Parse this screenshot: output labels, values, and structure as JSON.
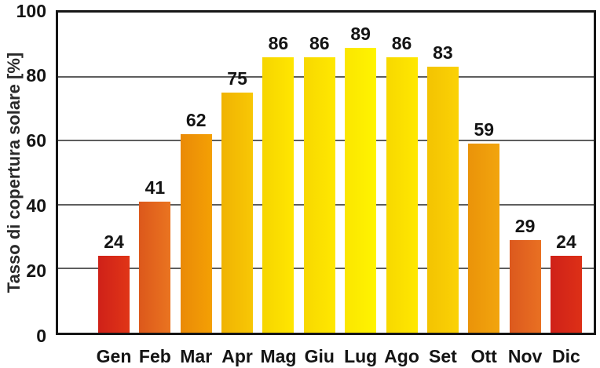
{
  "chart_data": {
    "type": "bar",
    "title": "",
    "xlabel": "",
    "ylabel": "Tasso di copertura solare [%]",
    "categories": [
      "Gen",
      "Feb",
      "Mar",
      "Apr",
      "Mag",
      "Giu",
      "Lug",
      "Ago",
      "Set",
      "Ott",
      "Nov",
      "Dic"
    ],
    "values": [
      24,
      41,
      62,
      75,
      86,
      86,
      89,
      86,
      83,
      59,
      29,
      24
    ],
    "value_labels": [
      "24",
      "41",
      "62",
      "75",
      "86",
      "86",
      "89",
      "86",
      "83",
      "59",
      "29",
      "24"
    ],
    "ylim": [
      0,
      100
    ],
    "yticks": [
      0,
      20,
      40,
      60,
      80,
      100
    ],
    "gridlines_at": [
      20,
      40,
      60,
      80
    ],
    "grid": "horizontal",
    "legend": "none",
    "bar_gradients": [
      [
        "#cf2118",
        "#e03517"
      ],
      [
        "#dc581b",
        "#ea7420"
      ],
      [
        "#ea8a07",
        "#f4a004"
      ],
      [
        "#f0b303",
        "#f8c705"
      ],
      [
        "#f6d500",
        "#ffe600"
      ],
      [
        "#f7d800",
        "#ffe800"
      ],
      [
        "#fbe600",
        "#fff400"
      ],
      [
        "#f7d800",
        "#ffe800"
      ],
      [
        "#f3c302",
        "#fbd204"
      ],
      [
        "#ea9309",
        "#f2a50d"
      ],
      [
        "#dc591e",
        "#e97022"
      ],
      [
        "#cf2118",
        "#dd3017"
      ]
    ],
    "colors": {
      "background": "#ffffff",
      "frame": "#161616",
      "gridline": "#5e5e5e",
      "text": "#141414"
    }
  }
}
